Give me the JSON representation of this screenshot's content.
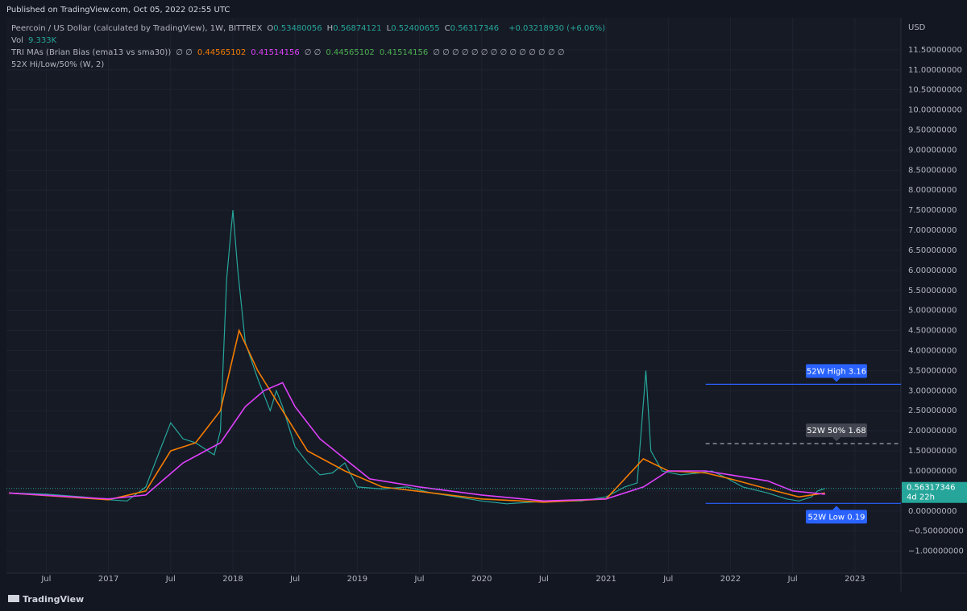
{
  "header": "Published on TradingView.com, Oct 05, 2022 02:55 UTC",
  "footer": "TradingView",
  "legend": {
    "symbol": "Peercoin / US Dollar (calculated by TradingView), 1W, BITTREX",
    "ohlc": [
      [
        "O",
        "0.53480056"
      ],
      [
        "H",
        "0.56874121"
      ],
      [
        "L",
        "0.52400655"
      ],
      [
        "C",
        "0.56317346"
      ]
    ],
    "change": "+0.03218930 (+6.06%)",
    "vol_label": "Vol",
    "vol_value": "9.333K",
    "ma_name": "TRI MAs (Brian Bias (ema13 vs sma30))",
    "ma_empty1": "∅ ∅",
    "ma_ema": "0.44565102",
    "ma_sma": "0.41514156",
    "ma_empty2": "∅ ∅",
    "ma_fill1": "0.44565102",
    "ma_fill2": "0.41514156",
    "ma_empty3": "∅ ∅ ∅ ∅ ∅ ∅ ∅ ∅ ∅ ∅ ∅ ∅ ∅ ∅",
    "hl_name": "52X Hi/Low/50% (W, 2)"
  },
  "chart_data": {
    "type": "line",
    "y_unit": "USD",
    "xlim": [
      2016.18,
      2023.37
    ],
    "xticks": [
      {
        "value": 2016.5,
        "label": "Jul"
      },
      2017,
      {
        "value": 2017.5,
        "label": "Jul"
      },
      2018,
      {
        "value": 2018.5,
        "label": "Jul"
      },
      2019,
      {
        "value": 2019.5,
        "label": "Jul"
      },
      2020,
      {
        "value": 2020.5,
        "label": "Jul"
      },
      2021,
      {
        "value": 2021.5,
        "label": "Jul"
      },
      2022,
      {
        "value": 2022.5,
        "label": "Jul"
      },
      2023
    ],
    "ylim": [
      -1.55,
      12.3
    ],
    "yticks": [
      {
        "value": -1,
        "label": "−1.00000000"
      },
      {
        "value": -0.5,
        "label": "−0.50000000"
      },
      {
        "value": 0,
        "label": "0.00000000"
      },
      {
        "value": 0.5,
        "label": "0.50000000"
      },
      {
        "value": 1,
        "label": "1.00000000"
      },
      {
        "value": 1.5,
        "label": "1.50000000"
      },
      {
        "value": 2,
        "label": "2.00000000"
      },
      {
        "value": 2.5,
        "label": "2.50000000"
      },
      {
        "value": 3,
        "label": "3.00000000"
      },
      {
        "value": 3.5,
        "label": "3.50000000"
      },
      {
        "value": 4,
        "label": "4.00000000"
      },
      {
        "value": 4.5,
        "label": "4.50000000"
      },
      {
        "value": 5,
        "label": "5.00000000"
      },
      {
        "value": 5.5,
        "label": "5.50000000"
      },
      {
        "value": 6,
        "label": "6.00000000"
      },
      {
        "value": 6.5,
        "label": "6.50000000"
      },
      {
        "value": 7,
        "label": "7.00000000"
      },
      {
        "value": 7.5,
        "label": "7.50000000"
      },
      {
        "value": 8,
        "label": "8.00000000"
      },
      {
        "value": 8.5,
        "label": "8.50000000"
      },
      {
        "value": 9,
        "label": "9.00000000"
      },
      {
        "value": 9.5,
        "label": "9.50000000"
      },
      {
        "value": 10,
        "label": "10.00000000"
      },
      {
        "value": 10.5,
        "label": "10.50000000"
      },
      {
        "value": 11,
        "label": "11.00000000"
      },
      {
        "value": 11.5,
        "label": "11.50000000"
      }
    ],
    "grid": true,
    "series": [
      {
        "color": "#26a69a",
        "x": [
          2016.2,
          2016.5,
          2016.8,
          2017.0,
          2017.15,
          2017.3,
          2017.4,
          2017.5,
          2017.6,
          2017.7,
          2017.8,
          2017.85,
          2017.9,
          2017.95,
          2018.0,
          2018.04,
          2018.1,
          2018.2,
          2018.3,
          2018.35,
          2018.4,
          2018.5,
          2018.6,
          2018.7,
          2018.8,
          2018.9,
          2019.0,
          2019.2,
          2019.4,
          2019.6,
          2019.8,
          2020.0,
          2020.2,
          2020.4,
          2020.6,
          2020.8,
          2021.0,
          2021.15,
          2021.25,
          2021.32,
          2021.36,
          2021.45,
          2021.6,
          2021.75,
          2021.85,
          2021.95,
          2022.1,
          2022.3,
          2022.45,
          2022.55,
          2022.65,
          2022.7,
          2022.76
        ],
        "values": [
          0.45,
          0.42,
          0.35,
          0.28,
          0.25,
          0.6,
          1.4,
          2.2,
          1.8,
          1.7,
          1.5,
          1.4,
          2.0,
          5.8,
          7.5,
          6.0,
          4.2,
          3.3,
          2.5,
          3.0,
          2.6,
          1.6,
          1.2,
          0.9,
          0.95,
          1.2,
          0.6,
          0.55,
          0.6,
          0.45,
          0.35,
          0.25,
          0.18,
          0.22,
          0.25,
          0.25,
          0.35,
          0.6,
          0.7,
          3.5,
          1.5,
          1.0,
          0.9,
          0.95,
          1.0,
          0.85,
          0.6,
          0.45,
          0.3,
          0.25,
          0.35,
          0.5,
          0.56
        ]
      },
      {
        "color": "#f57c00",
        "x": [
          2016.2,
          2017.0,
          2017.3,
          2017.5,
          2017.7,
          2017.9,
          2018.05,
          2018.2,
          2018.4,
          2018.6,
          2018.9,
          2019.2,
          2020.0,
          2020.5,
          2021.0,
          2021.3,
          2021.5,
          2021.8,
          2022.0,
          2022.3,
          2022.55,
          2022.76
        ],
        "values": [
          0.45,
          0.28,
          0.5,
          1.5,
          1.7,
          2.5,
          4.5,
          3.5,
          2.5,
          1.5,
          1.0,
          0.6,
          0.3,
          0.22,
          0.3,
          1.3,
          1.0,
          0.95,
          0.8,
          0.55,
          0.35,
          0.45
        ]
      },
      {
        "color": "#e040fb",
        "x": [
          2016.2,
          2017.0,
          2017.3,
          2017.6,
          2017.9,
          2018.1,
          2018.25,
          2018.4,
          2018.5,
          2018.7,
          2018.9,
          2019.1,
          2019.5,
          2020.0,
          2020.5,
          2021.0,
          2021.3,
          2021.5,
          2021.8,
          2022.0,
          2022.3,
          2022.5,
          2022.76
        ],
        "values": [
          0.45,
          0.3,
          0.4,
          1.2,
          1.7,
          2.6,
          3.0,
          3.2,
          2.6,
          1.8,
          1.3,
          0.8,
          0.6,
          0.4,
          0.25,
          0.3,
          0.6,
          1.0,
          1.0,
          0.9,
          0.75,
          0.5,
          0.42
        ]
      }
    ],
    "levels": [
      {
        "label": "52W High 3.16",
        "value": 3.16,
        "x": 2021.8,
        "color": "#2962ff"
      },
      {
        "label": "52W 50% 1.68",
        "value": 1.68,
        "x": 2021.8,
        "color": "#b2b5be"
      },
      {
        "label": "52W Low 0.19",
        "value": 0.19,
        "x": 2021.8,
        "color": "#2962ff"
      }
    ],
    "last_price": {
      "value": 0.56317346,
      "label": "0.56317346",
      "countdown": "4d 22h",
      "color": "#26a69a"
    }
  }
}
